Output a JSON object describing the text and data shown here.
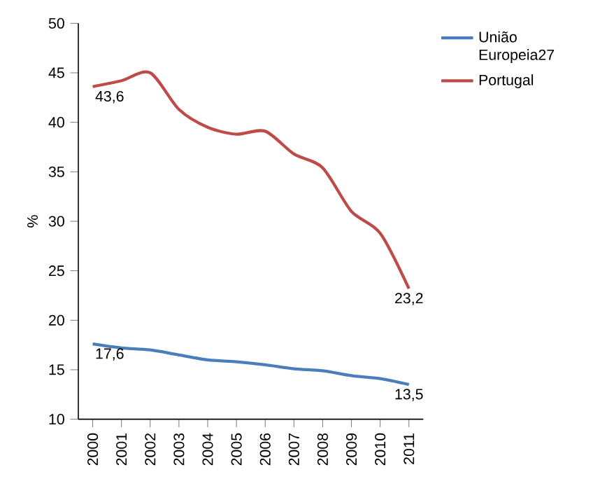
{
  "chart_data": {
    "type": "line",
    "ylabel": "%",
    "categories": [
      "2000",
      "2001",
      "2002",
      "2003",
      "2004",
      "2005",
      "2006",
      "2007",
      "2008",
      "2009",
      "2010",
      "2011"
    ],
    "series": [
      {
        "name": "União Europeia27",
        "color": "#4a7ebb",
        "values": [
          17.6,
          17.2,
          17.0,
          16.5,
          16.0,
          15.8,
          15.5,
          15.1,
          14.9,
          14.4,
          14.1,
          13.5
        ],
        "value_labels": [
          "17,6",
          null,
          null,
          null,
          null,
          null,
          null,
          null,
          null,
          null,
          null,
          "13,5"
        ]
      },
      {
        "name": "Portugal",
        "color": "#be4b48",
        "values": [
          43.6,
          44.2,
          45.0,
          41.3,
          39.5,
          38.8,
          39.1,
          36.8,
          35.4,
          31.0,
          28.8,
          23.2
        ],
        "value_labels": [
          "43,6",
          null,
          null,
          null,
          null,
          null,
          null,
          null,
          null,
          null,
          null,
          "23,2"
        ]
      }
    ],
    "ylim": [
      10,
      50
    ],
    "yticks": [
      10,
      15,
      20,
      25,
      30,
      35,
      40,
      45,
      50
    ],
    "grid": false,
    "legend": "top right",
    "marker": "none",
    "line_style": "solid"
  }
}
